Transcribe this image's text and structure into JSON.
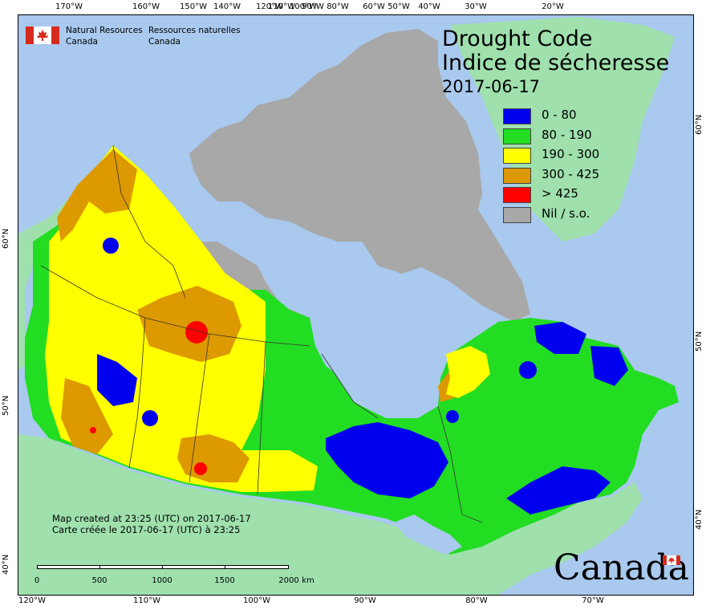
{
  "title": "Drought Code",
  "subtitle": "Indice de sécheresse",
  "date": "2017-06-17",
  "legend": [
    {
      "label": "0 - 80",
      "color": "#0000ee"
    },
    {
      "label": "80 - 190",
      "color": "#22dd22"
    },
    {
      "label": "190 - 300",
      "color": "#ffff00"
    },
    {
      "label": "300 - 425",
      "color": "#dd9900"
    },
    {
      "label": "> 425",
      "color": "#ff0000"
    },
    {
      "label": "Nil / s.o.",
      "color": "#a8a8a8"
    }
  ],
  "agency": {
    "en_line1": "Natural Resources",
    "en_line2": "Canada",
    "fr_line1": "Ressources naturelles",
    "fr_line2": "Canada"
  },
  "note": {
    "line1": "Map created at 23:25 (UTC) on 2017-06-17",
    "line2": "Carte créée le 2017-06-17 (UTC) à 23:25"
  },
  "scale_bar": {
    "labels": [
      "0",
      "500",
      "1000",
      "1500",
      "2000"
    ],
    "unit": "km"
  },
  "wordmark": "Canada",
  "top_ticks": [
    "170°W",
    "160°W",
    "150°W",
    "140°W",
    "120°W",
    "110°W",
    "100°W",
    "90°W",
    "80°W",
    "60°W",
    "50°W",
    "40°W",
    "30°W",
    "20°W"
  ],
  "bottom_ticks": [
    "120°W",
    "110°W",
    "100°W",
    "90°W",
    "80°W",
    "70°W"
  ],
  "left_ticks": [
    "60°N",
    "50°N",
    "40°N"
  ],
  "right_ticks": [
    "60°N",
    "50°N",
    "40°N"
  ],
  "colors": {
    "water": "#a9c9ee",
    "land_other": "#9fe0ad",
    "nil": "#a8a8a8",
    "low": "#0000ee",
    "moderate": "#22dd22",
    "high": "#ffff00",
    "very_high": "#dd9900",
    "extreme": "#ff0000"
  }
}
